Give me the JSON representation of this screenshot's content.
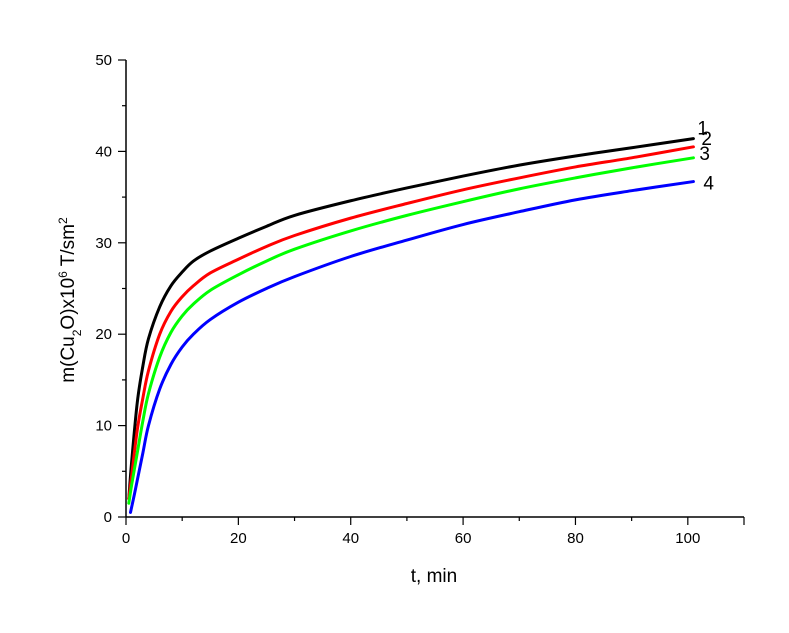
{
  "chart_data": {
    "type": "line",
    "title": "",
    "xlabel": "t, min",
    "ylabel": {
      "base": "m(Cu",
      "sub": "2",
      "mid": "O)x10",
      "sup": "6",
      "unit": " T/sm",
      "sup2": "2"
    },
    "xlim": [
      0,
      110
    ],
    "ylim": [
      0,
      50
    ],
    "x_ticks": [
      0,
      20,
      40,
      60,
      80,
      100
    ],
    "y_ticks": [
      0,
      10,
      20,
      30,
      40,
      50
    ],
    "grid": false,
    "legend": "inline labels at line ends (right)",
    "series": [
      {
        "name": "1",
        "color": "#000000",
        "x": [
          0.5,
          1,
          2,
          3,
          4,
          6,
          8,
          10,
          12,
          15,
          20,
          25,
          30,
          40,
          50,
          60,
          70,
          80,
          90,
          101
        ],
        "y": [
          2,
          6,
          12.5,
          16.5,
          19.5,
          23,
          25.3,
          26.8,
          28,
          29.1,
          30.5,
          31.8,
          33,
          34.6,
          36,
          37.3,
          38.5,
          39.5,
          40.4,
          41.4
        ]
      },
      {
        "name": "2",
        "color": "#ff0000",
        "x": [
          0.5,
          1,
          2,
          3,
          4,
          6,
          8,
          10,
          12,
          15,
          20,
          25,
          30,
          40,
          50,
          60,
          70,
          80,
          90,
          101
        ],
        "y": [
          2,
          4.5,
          9.5,
          13,
          16,
          20,
          22.5,
          24.1,
          25.3,
          26.7,
          28.2,
          29.6,
          30.8,
          32.7,
          34.3,
          35.8,
          37.1,
          38.3,
          39.3,
          40.5
        ]
      },
      {
        "name": "3",
        "color": "#00ff00",
        "x": [
          0.5,
          1,
          2,
          3,
          4,
          6,
          8,
          10,
          12,
          15,
          20,
          25,
          30,
          40,
          50,
          60,
          70,
          80,
          90,
          101
        ],
        "y": [
          1.5,
          3.5,
          7,
          10.5,
          13.5,
          17.5,
          20.2,
          22,
          23.3,
          24.8,
          26.5,
          28,
          29.3,
          31.3,
          33,
          34.5,
          35.9,
          37.1,
          38.2,
          39.3
        ]
      },
      {
        "name": "4",
        "color": "#0000ff",
        "x": [
          0.8,
          1.5,
          2,
          3,
          4,
          6,
          8,
          10,
          12,
          15,
          20,
          25,
          30,
          40,
          50,
          60,
          70,
          80,
          90,
          101
        ],
        "y": [
          0.5,
          2.5,
          4,
          7,
          10,
          14,
          16.7,
          18.6,
          20,
          21.6,
          23.5,
          25,
          26.3,
          28.5,
          30.3,
          32,
          33.4,
          34.7,
          35.7,
          36.7
        ]
      }
    ]
  }
}
